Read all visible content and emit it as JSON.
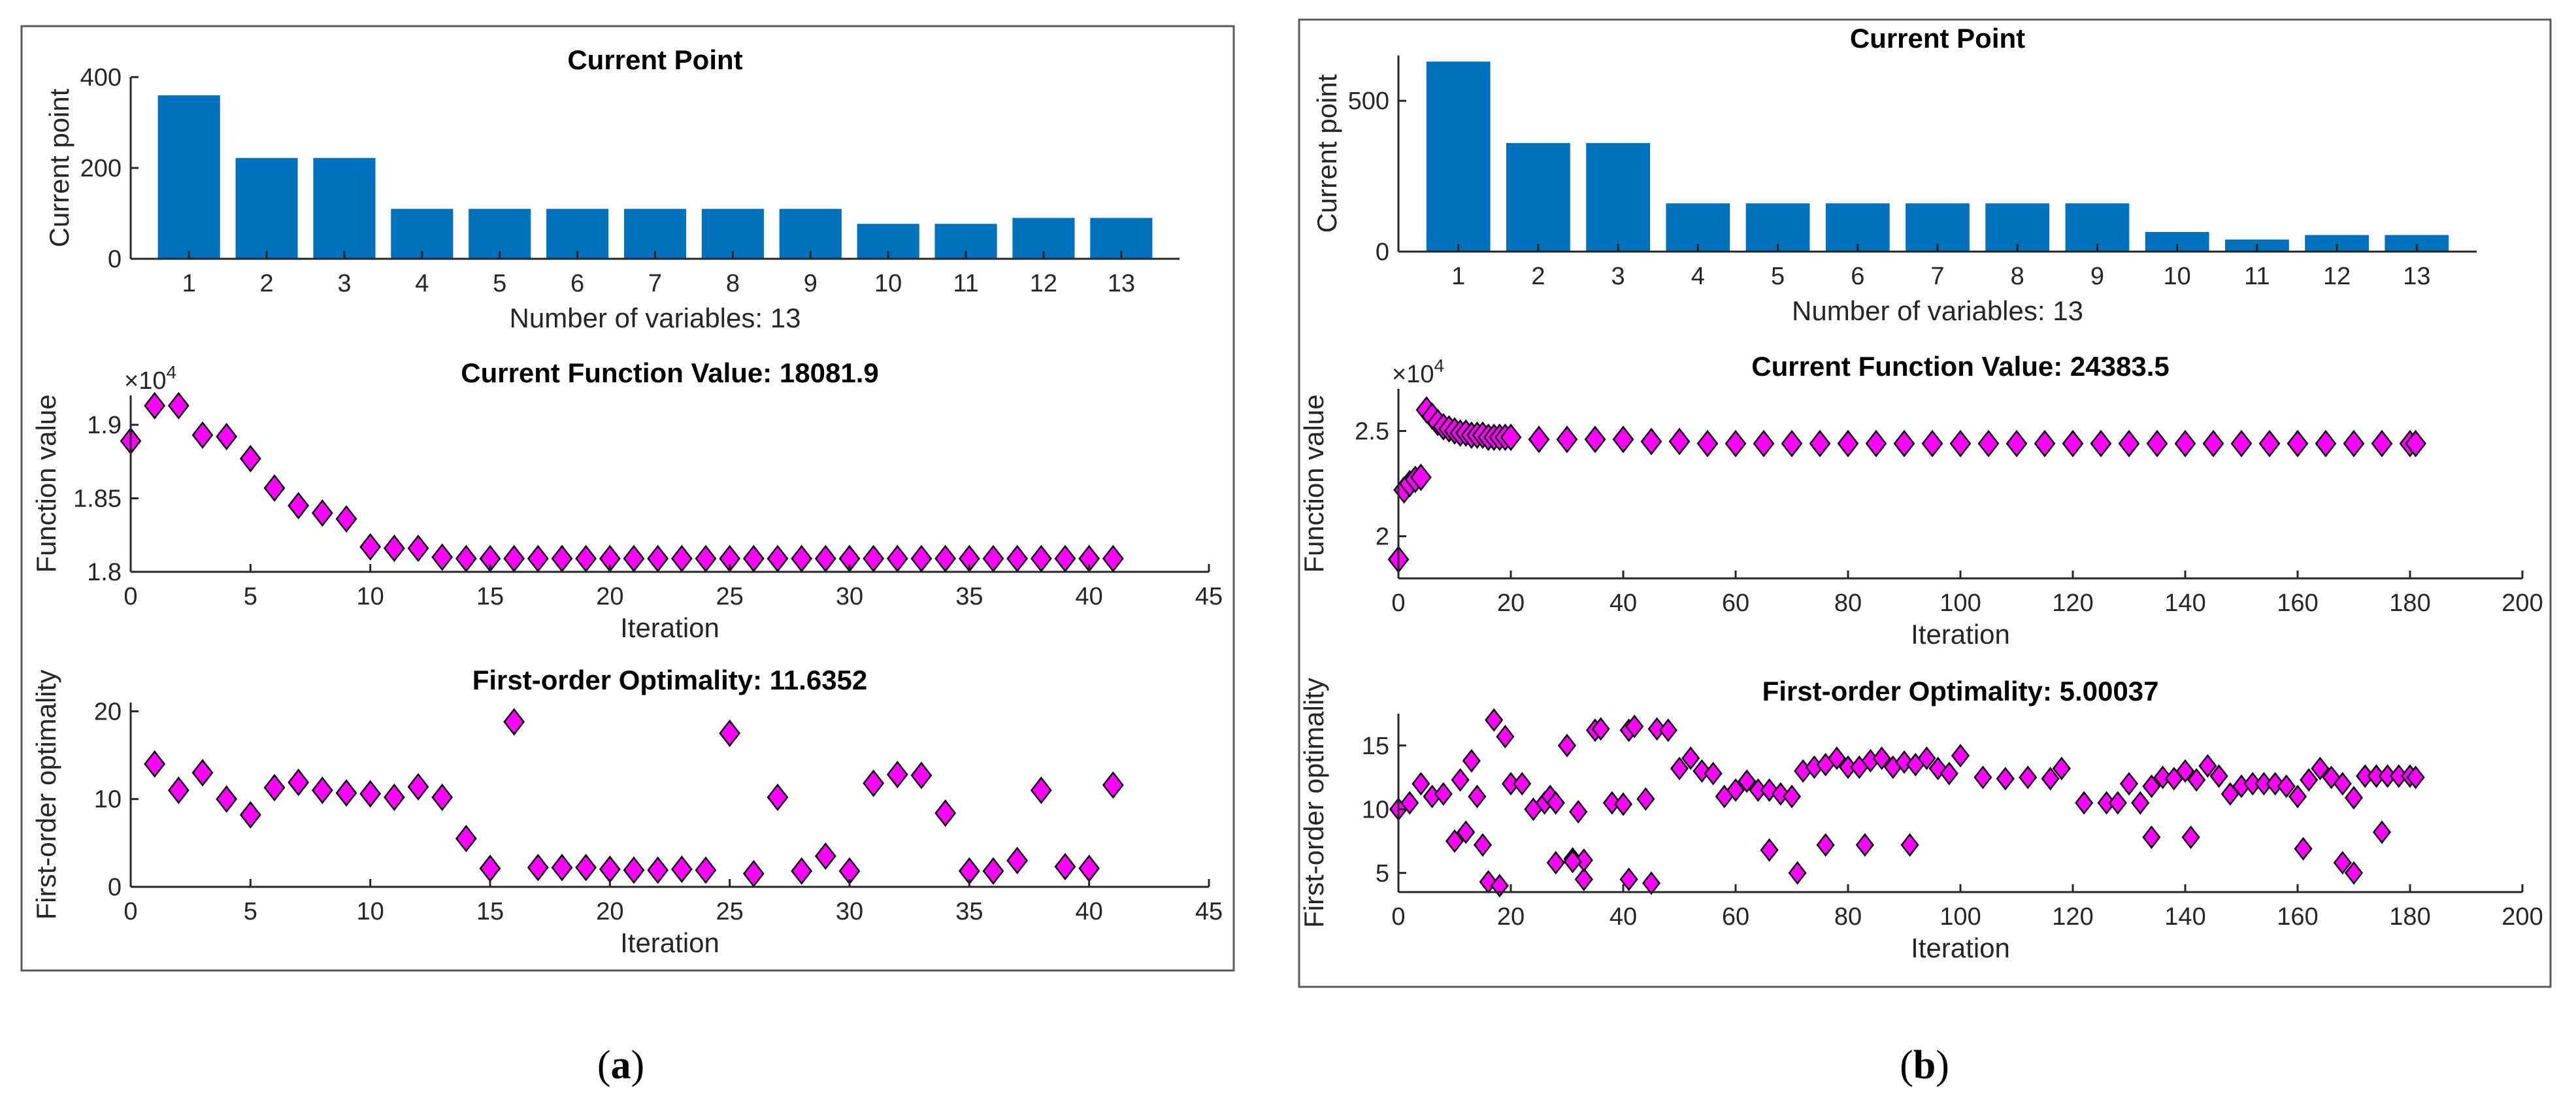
{
  "colors": {
    "bar": "#0072BD",
    "marker": "#FF00FF",
    "marker_edge": "#000000",
    "axis": "#262626"
  },
  "panels": [
    {
      "label": "a",
      "chart_data": [
        {
          "type": "bar",
          "title": "Current Point",
          "xlabel": "Number of variables: 13",
          "ylabel": "Current point",
          "categories": [
            "1",
            "2",
            "3",
            "4",
            "5",
            "6",
            "7",
            "8",
            "9",
            "10",
            "11",
            "12",
            "13"
          ],
          "values": [
            360,
            222,
            222,
            110,
            110,
            110,
            110,
            110,
            110,
            77,
            77,
            90,
            90
          ],
          "ylim": [
            0,
            400
          ],
          "yticks": [
            "0",
            "200",
            "400"
          ]
        },
        {
          "type": "scatter",
          "title": "Current Function Value: 18081.9",
          "xlabel": "Iteration",
          "ylabel": "Function value",
          "exponent": "×10",
          "exponent_power": "4",
          "xlim": [
            0,
            45
          ],
          "ylim": [
            1.8,
            1.92
          ],
          "xticks": [
            "0",
            "5",
            "10",
            "15",
            "20",
            "25",
            "30",
            "35",
            "40",
            "45"
          ],
          "yticks": [
            "1.8",
            "1.85",
            "1.9"
          ],
          "x": [
            0,
            1,
            2,
            3,
            4,
            5,
            6,
            7,
            8,
            9,
            10,
            11,
            12,
            13,
            14,
            15,
            16,
            17,
            18,
            19,
            20,
            21,
            22,
            23,
            24,
            25,
            26,
            27,
            28,
            29,
            30,
            31,
            32,
            33,
            34,
            35,
            36,
            37,
            38,
            39,
            40,
            41
          ],
          "y": [
            1.889,
            1.913,
            1.913,
            1.893,
            1.892,
            1.877,
            1.857,
            1.845,
            1.84,
            1.836,
            1.817,
            1.816,
            1.816,
            1.81,
            1.809,
            1.809,
            1.809,
            1.809,
            1.809,
            1.809,
            1.809,
            1.809,
            1.809,
            1.809,
            1.809,
            1.809,
            1.809,
            1.809,
            1.809,
            1.809,
            1.809,
            1.809,
            1.809,
            1.809,
            1.809,
            1.809,
            1.809,
            1.809,
            1.809,
            1.809,
            1.809,
            1.809
          ]
        },
        {
          "type": "scatter",
          "title": "First-order Optimality: 11.6352",
          "xlabel": "Iteration",
          "ylabel": "First-order optimality",
          "xlim": [
            0,
            45
          ],
          "ylim": [
            0,
            21
          ],
          "xticks": [
            "0",
            "5",
            "10",
            "15",
            "20",
            "25",
            "30",
            "35",
            "40",
            "45"
          ],
          "yticks": [
            "0",
            "10",
            "20"
          ],
          "x": [
            1,
            2,
            3,
            4,
            5,
            6,
            7,
            8,
            9,
            10,
            11,
            12,
            13,
            14,
            15,
            16,
            17,
            18,
            19,
            20,
            21,
            22,
            23,
            24,
            25,
            26,
            27,
            28,
            29,
            30,
            31,
            32,
            33,
            34,
            35,
            36,
            37,
            38,
            39,
            40,
            41
          ],
          "y": [
            14,
            11,
            13,
            10,
            8.2,
            11.3,
            11.9,
            11,
            10.7,
            10.6,
            10.2,
            11.4,
            10.2,
            5.5,
            2.1,
            18.8,
            2.2,
            2.2,
            2.2,
            2.0,
            1.9,
            1.9,
            2.0,
            1.9,
            17.5,
            1.5,
            10.2,
            1.8,
            3.5,
            1.8,
            11.8,
            12.8,
            12.7,
            8.4,
            1.8,
            1.8,
            3.0,
            11,
            2.3,
            2.1,
            11.6
          ]
        }
      ]
    },
    {
      "label": "b",
      "chart_data": [
        {
          "type": "bar",
          "title": "Current Point",
          "xlabel": "Number of variables: 13",
          "ylabel": "Current point",
          "categories": [
            "1",
            "2",
            "3",
            "4",
            "5",
            "6",
            "7",
            "8",
            "9",
            "10",
            "11",
            "12",
            "13"
          ],
          "values": [
            630,
            360,
            360,
            160,
            160,
            160,
            160,
            160,
            160,
            65,
            40,
            55,
            55
          ],
          "ylim": [
            0,
            650
          ],
          "yticks": [
            "0",
            "500"
          ]
        },
        {
          "type": "scatter",
          "title": "Current Function Value: 24383.5",
          "xlabel": "Iteration",
          "ylabel": "Function value",
          "exponent": "×10",
          "exponent_power": "4",
          "xlim": [
            0,
            200
          ],
          "ylim": [
            1.8,
            2.7
          ],
          "xticks": [
            "0",
            "20",
            "40",
            "60",
            "80",
            "100",
            "120",
            "140",
            "160",
            "180",
            "200"
          ],
          "yticks": [
            "2",
            "2.5"
          ],
          "x": [
            0,
            1,
            2,
            3,
            4,
            5,
            6,
            7,
            8,
            9,
            10,
            11,
            12,
            13,
            14,
            15,
            16,
            17,
            18,
            19,
            20,
            25,
            30,
            35,
            40,
            45,
            50,
            55,
            60,
            65,
            70,
            75,
            80,
            85,
            90,
            95,
            100,
            105,
            110,
            115,
            120,
            125,
            130,
            135,
            140,
            145,
            150,
            155,
            160,
            165,
            170,
            175,
            180,
            181
          ],
          "y": [
            1.89,
            2.22,
            2.25,
            2.27,
            2.28,
            2.6,
            2.57,
            2.54,
            2.52,
            2.51,
            2.5,
            2.49,
            2.49,
            2.48,
            2.48,
            2.48,
            2.47,
            2.47,
            2.47,
            2.47,
            2.47,
            2.46,
            2.46,
            2.46,
            2.46,
            2.45,
            2.45,
            2.44,
            2.44,
            2.44,
            2.44,
            2.44,
            2.44,
            2.44,
            2.44,
            2.44,
            2.44,
            2.44,
            2.44,
            2.44,
            2.44,
            2.44,
            2.44,
            2.44,
            2.44,
            2.44,
            2.44,
            2.44,
            2.44,
            2.44,
            2.44,
            2.44,
            2.44,
            2.44
          ]
        },
        {
          "type": "scatter",
          "title": "First-order Optimality: 5.00037",
          "xlabel": "Iteration",
          "ylabel": "First-order optimality",
          "xlim": [
            0,
            200
          ],
          "ylim": [
            3.5,
            17.5
          ],
          "xticks": [
            "0",
            "20",
            "40",
            "60",
            "80",
            "100",
            "120",
            "140",
            "160",
            "180",
            "200"
          ],
          "yticks": [
            "5",
            "10",
            "15"
          ],
          "x": [
            0,
            2,
            4,
            6,
            8,
            10,
            11,
            12,
            13,
            14,
            15,
            16,
            17,
            18,
            19,
            20,
            22,
            24,
            26,
            27,
            28,
            30,
            31,
            32,
            33,
            35,
            36,
            38,
            40,
            41,
            42,
            44,
            46,
            48,
            50,
            52,
            54,
            56,
            58,
            60,
            62,
            64,
            66,
            68,
            70,
            72,
            74,
            76,
            78,
            80,
            82,
            84,
            86,
            88,
            90,
            92,
            94,
            96,
            98,
            100,
            104,
            108,
            112,
            116,
            118,
            122,
            126,
            128,
            130,
            132,
            134,
            136,
            138,
            140,
            142,
            144,
            146,
            148,
            150,
            152,
            154,
            156,
            158,
            160,
            162,
            164,
            166,
            168,
            170,
            172,
            174,
            176,
            178,
            180,
            181,
            170,
            175,
            168,
            161,
            141,
            134,
            91,
            83,
            76,
            71,
            66,
            45,
            41,
            33,
            31,
            28
          ],
          "y": [
            10,
            10.5,
            12,
            11,
            11.2,
            7.5,
            12.3,
            8.2,
            13.8,
            11,
            7.2,
            4.3,
            17,
            4,
            15.7,
            12,
            12,
            10,
            10.5,
            11,
            10.5,
            15,
            6.1,
            9.8,
            4.5,
            16.2,
            16.3,
            10.5,
            10.4,
            16.2,
            16.5,
            10.8,
            16.3,
            16.2,
            13.2,
            14,
            13,
            12.8,
            11,
            11.5,
            12.2,
            11.5,
            11.5,
            11.2,
            11,
            13,
            13.3,
            13.5,
            14,
            13.3,
            13.3,
            13.8,
            14,
            13.3,
            13.7,
            13.5,
            14,
            13.2,
            12.8,
            14.2,
            12.5,
            12.4,
            12.5,
            12.4,
            13.2,
            10.5,
            10.5,
            10.5,
            12,
            10.5,
            11.8,
            12.5,
            12.4,
            13,
            12.3,
            13.4,
            12.6,
            11.2,
            11.8,
            12,
            12,
            12,
            11.8,
            11,
            12.3,
            13.2,
            12.5,
            12,
            10.9,
            12.6,
            12.6,
            12.6,
            12.6,
            12.6,
            12.5,
            5,
            8.2,
            5.8,
            6.9,
            7.8,
            7.8,
            7.2,
            7.2,
            7.2,
            5,
            6.8,
            4.2,
            4.5,
            6,
            5.9,
            5.8
          ]
        }
      ]
    }
  ]
}
